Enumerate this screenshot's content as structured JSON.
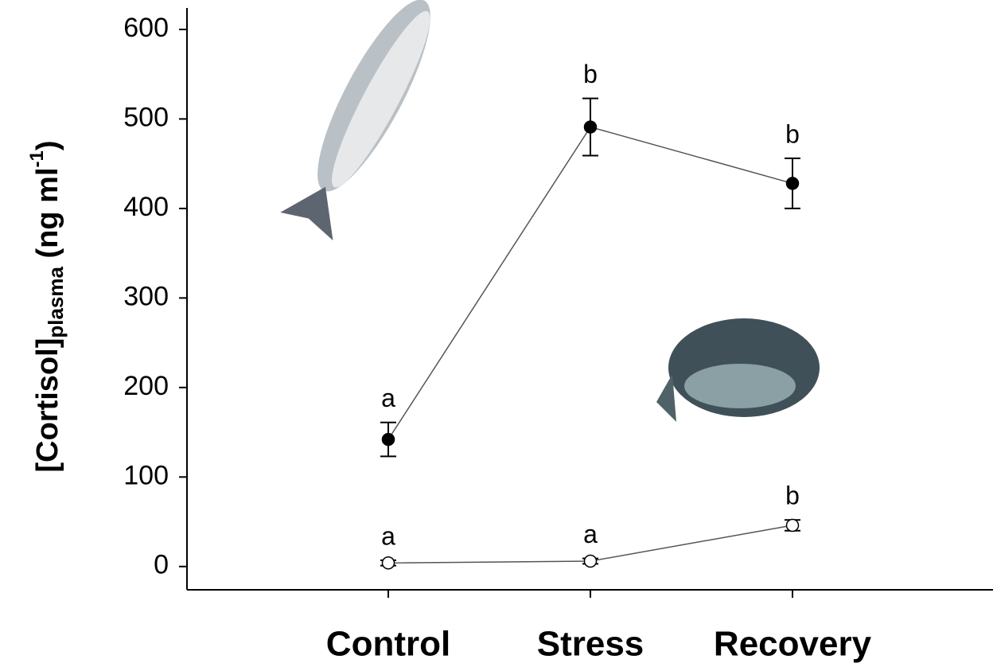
{
  "chart_data": {
    "type": "line",
    "ylabel": {
      "main": "[Cortisol]",
      "sub": "plasma",
      "unit": "(ng ml",
      "sup": "-1",
      "close": ")"
    },
    "categories": [
      "Control",
      "Stress",
      "Recovery"
    ],
    "series": [
      {
        "color": "#000000",
        "fill": "#000000",
        "values": [
          142,
          491,
          428
        ],
        "errors": [
          19,
          32,
          28
        ],
        "labels": [
          "a",
          "b",
          "b"
        ]
      },
      {
        "color": "#000000",
        "fill": "#ffffff",
        "values": [
          4,
          6,
          46
        ],
        "errors": [
          3,
          3,
          6
        ],
        "labels": [
          "a",
          "a",
          "b"
        ]
      }
    ],
    "ylim": [
      -26,
      624
    ],
    "yticks": [
      0,
      100,
      200,
      300,
      400,
      500,
      600
    ],
    "grid": false
  }
}
